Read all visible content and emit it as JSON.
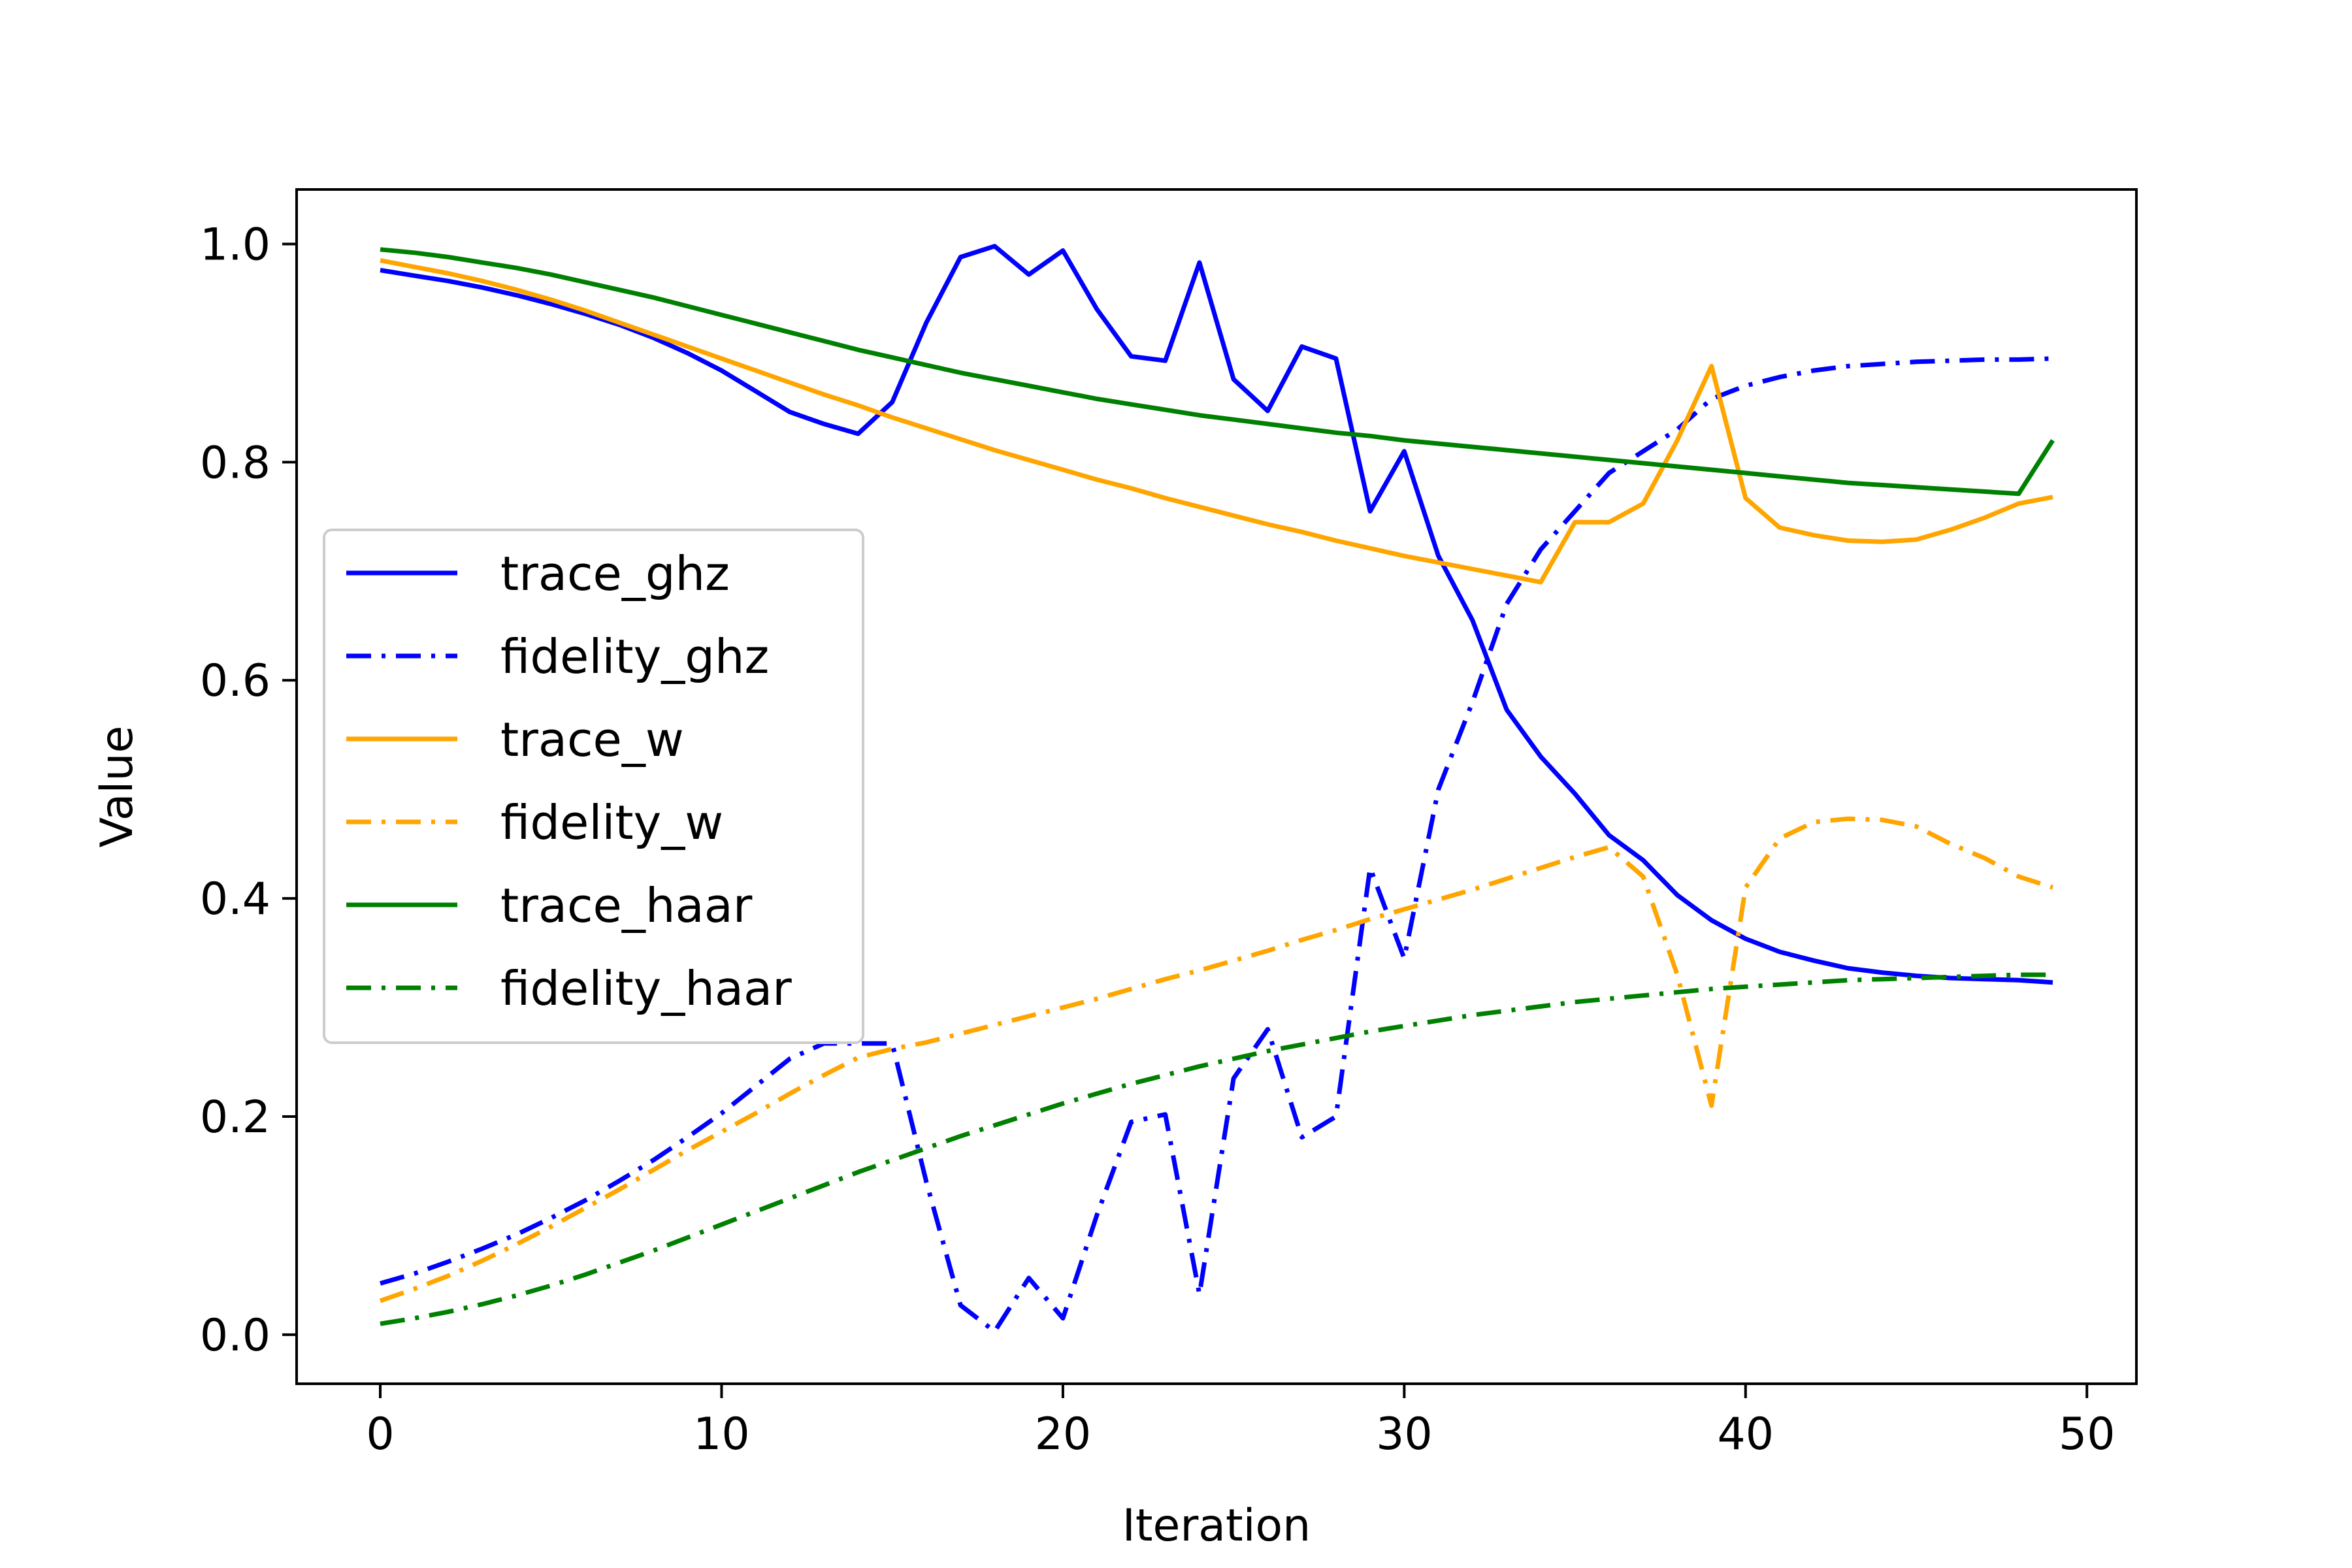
{
  "chart_data": {
    "type": "line",
    "title": "",
    "xlabel": "Iteration",
    "ylabel": "Value",
    "xlim": [
      -2.45,
      51.45
    ],
    "ylim": [
      -0.045,
      1.05
    ],
    "xticks": [
      0,
      10,
      20,
      30,
      40,
      50
    ],
    "yticks": [
      0.0,
      0.2,
      0.4,
      0.6,
      0.8,
      1.0
    ],
    "xtick_labels": [
      "0",
      "10",
      "20",
      "30",
      "40",
      "50"
    ],
    "ytick_labels": [
      "0.0",
      "0.2",
      "0.4",
      "0.6",
      "0.8",
      "1.0"
    ],
    "grid": false,
    "legend_position": "center-left",
    "x": [
      0,
      1,
      2,
      3,
      4,
      5,
      6,
      7,
      8,
      9,
      10,
      11,
      12,
      13,
      14,
      15,
      16,
      17,
      18,
      19,
      20,
      21,
      22,
      23,
      24,
      25,
      26,
      27,
      28,
      29,
      30,
      31,
      32,
      33,
      34,
      35,
      36,
      37,
      38,
      39,
      40,
      41,
      42,
      43,
      44,
      45,
      46,
      47,
      48,
      49
    ],
    "series": [
      {
        "name": "trace_ghz",
        "color": "#0000ff",
        "style": "solid",
        "values": [
          0.976,
          0.971,
          0.966,
          0.96,
          0.953,
          0.945,
          0.936,
          0.926,
          0.914,
          0.9,
          0.884,
          0.865,
          0.846,
          0.835,
          0.826,
          0.855,
          0.928,
          0.988,
          0.998,
          0.972,
          0.994,
          0.94,
          0.897,
          0.893,
          0.983,
          0.876,
          0.847,
          0.906,
          0.895,
          0.755,
          0.81,
          0.714,
          0.655,
          0.573,
          0.53,
          0.496,
          0.458,
          0.435,
          0.403,
          0.38,
          0.363,
          0.351,
          0.343,
          0.336,
          0.332,
          0.329,
          0.327,
          0.326,
          0.325,
          0.323
        ]
      },
      {
        "name": "fidelity_ghz",
        "color": "#0000ff",
        "style": "dashdot",
        "values": [
          0.047,
          0.056,
          0.067,
          0.079,
          0.092,
          0.107,
          0.123,
          0.141,
          0.16,
          0.181,
          0.203,
          0.228,
          0.253,
          0.267,
          0.267,
          0.267,
          0.14,
          0.027,
          0.003,
          0.052,
          0.015,
          0.11,
          0.195,
          0.202,
          0.037,
          0.235,
          0.28,
          0.181,
          0.2,
          0.428,
          0.345,
          0.5,
          0.58,
          0.67,
          0.72,
          0.755,
          0.79,
          0.81,
          0.83,
          0.858,
          0.87,
          0.878,
          0.884,
          0.888,
          0.89,
          0.892,
          0.893,
          0.894,
          0.894,
          0.895
        ]
      },
      {
        "name": "trace_w",
        "color": "#ffa500",
        "style": "solid",
        "values": [
          0.985,
          0.979,
          0.973,
          0.966,
          0.958,
          0.949,
          0.939,
          0.928,
          0.917,
          0.906,
          0.895,
          0.884,
          0.873,
          0.862,
          0.852,
          0.841,
          0.831,
          0.821,
          0.811,
          0.802,
          0.793,
          0.784,
          0.776,
          0.767,
          0.759,
          0.751,
          0.743,
          0.736,
          0.728,
          0.721,
          0.714,
          0.708,
          0.702,
          0.696,
          0.69,
          0.745,
          0.745,
          0.762,
          0.82,
          0.888,
          0.767,
          0.74,
          0.733,
          0.728,
          0.727,
          0.729,
          0.738,
          0.749,
          0.762,
          0.768
        ]
      },
      {
        "name": "fidelity_w",
        "color": "#ffa500",
        "style": "dashdot",
        "values": [
          0.031,
          0.042,
          0.054,
          0.068,
          0.083,
          0.099,
          0.116,
          0.133,
          0.151,
          0.169,
          0.186,
          0.203,
          0.221,
          0.238,
          0.254,
          0.262,
          0.268,
          0.276,
          0.284,
          0.292,
          0.3,
          0.308,
          0.317,
          0.326,
          0.334,
          0.343,
          0.352,
          0.362,
          0.371,
          0.381,
          0.39,
          0.399,
          0.408,
          0.418,
          0.428,
          0.438,
          0.447,
          0.42,
          0.33,
          0.21,
          0.41,
          0.455,
          0.47,
          0.473,
          0.472,
          0.466,
          0.45,
          0.437,
          0.42,
          0.41
        ]
      },
      {
        "name": "trace_haar",
        "color": "#008000",
        "style": "solid",
        "values": [
          0.995,
          0.992,
          0.988,
          0.983,
          0.978,
          0.972,
          0.965,
          0.958,
          0.951,
          0.943,
          0.935,
          0.927,
          0.919,
          0.911,
          0.903,
          0.896,
          0.889,
          0.882,
          0.876,
          0.87,
          0.864,
          0.858,
          0.853,
          0.848,
          0.843,
          0.839,
          0.835,
          0.831,
          0.827,
          0.824,
          0.82,
          0.817,
          0.814,
          0.811,
          0.808,
          0.805,
          0.802,
          0.799,
          0.796,
          0.793,
          0.79,
          0.787,
          0.784,
          0.781,
          0.779,
          0.777,
          0.775,
          0.773,
          0.771,
          0.82
        ]
      },
      {
        "name": "fidelity_haar",
        "color": "#008000",
        "style": "dashdot",
        "values": [
          0.01,
          0.015,
          0.021,
          0.028,
          0.036,
          0.045,
          0.055,
          0.066,
          0.077,
          0.089,
          0.101,
          0.113,
          0.125,
          0.137,
          0.149,
          0.16,
          0.171,
          0.182,
          0.192,
          0.202,
          0.212,
          0.221,
          0.23,
          0.238,
          0.246,
          0.253,
          0.26,
          0.266,
          0.272,
          0.278,
          0.283,
          0.288,
          0.293,
          0.297,
          0.301,
          0.305,
          0.308,
          0.311,
          0.314,
          0.317,
          0.319,
          0.321,
          0.323,
          0.325,
          0.326,
          0.327,
          0.328,
          0.329,
          0.33,
          0.33
        ]
      }
    ]
  }
}
